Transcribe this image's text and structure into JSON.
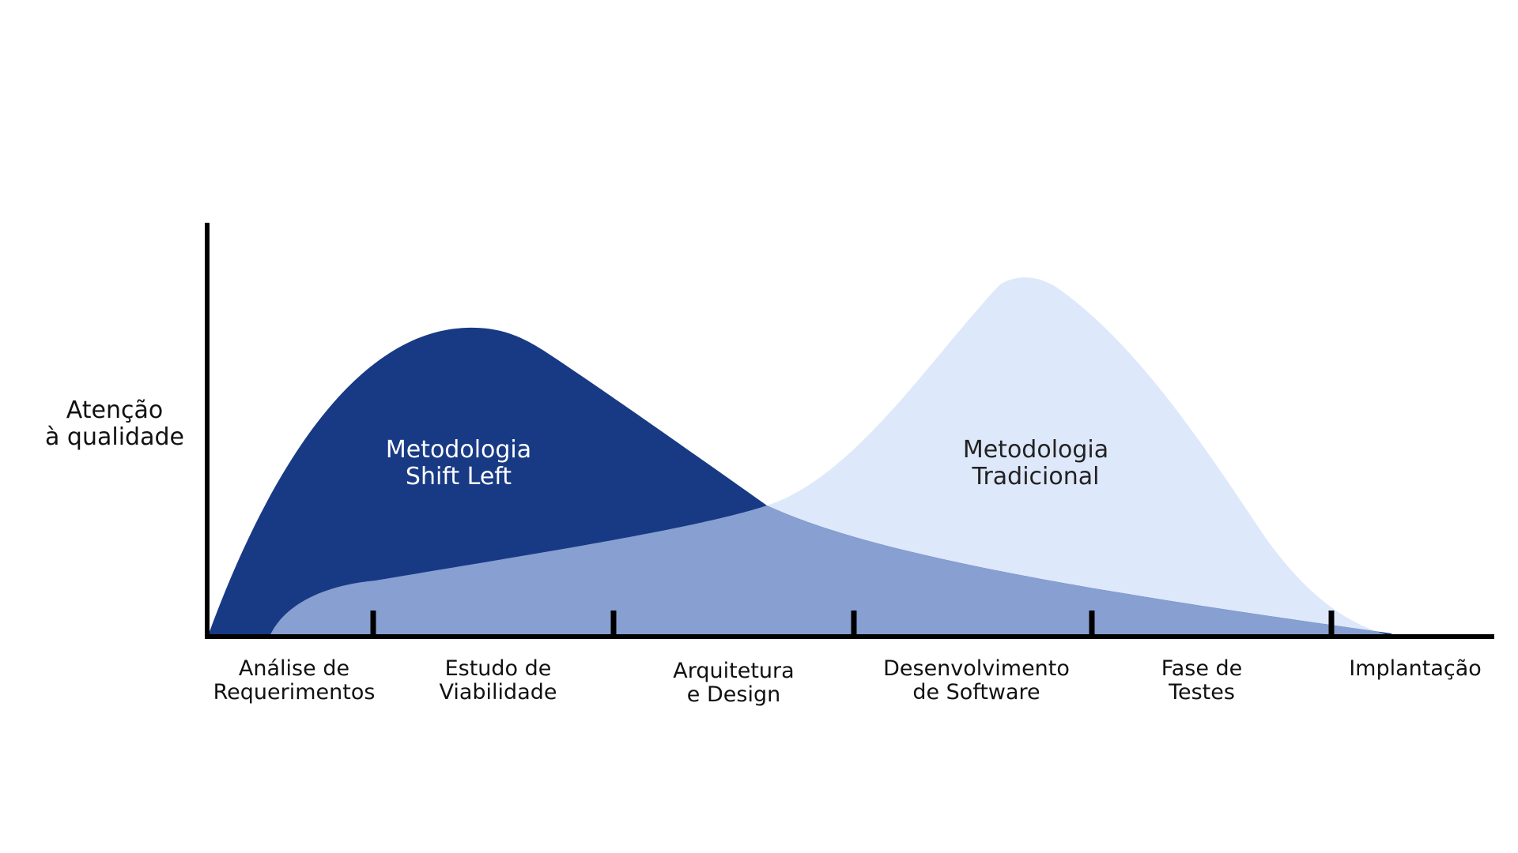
{
  "y_axis": {
    "label_line1": "Atenção",
    "label_line2": "à qualidade"
  },
  "x_axis": {
    "stages": [
      {
        "line1": "Análise de",
        "line2": "Requerimentos"
      },
      {
        "line1": "Estudo de",
        "line2": "Viabilidade"
      },
      {
        "line1": "Arquitetura",
        "line2": "e Design"
      },
      {
        "line1": "Desenvolvimento",
        "line2": "de Software"
      },
      {
        "line1": "Fase de",
        "line2": "Testes"
      },
      {
        "line1": "Implantação",
        "line2": ""
      }
    ]
  },
  "regions": {
    "shift_left": {
      "line1": "Metodologia",
      "line2": "Shift Left",
      "color": "#183a85"
    },
    "traditional": {
      "line1": "Metodologia",
      "line2": "Tradicional",
      "color": "#dee8fb"
    },
    "overlap_color": "#879fd1"
  },
  "chart_data": {
    "type": "area",
    "title": "",
    "ylabel": "Atenção à qualidade",
    "xlabel": "",
    "categories": [
      "Análise de Requerimentos",
      "Estudo de Viabilidade",
      "Arquitetura e Design",
      "Desenvolvimento de Software",
      "Fase de Testes",
      "Implantação"
    ],
    "series": [
      {
        "name": "Metodologia Shift Left"
      },
      {
        "name": "Metodologia Tradicional"
      }
    ]
  }
}
